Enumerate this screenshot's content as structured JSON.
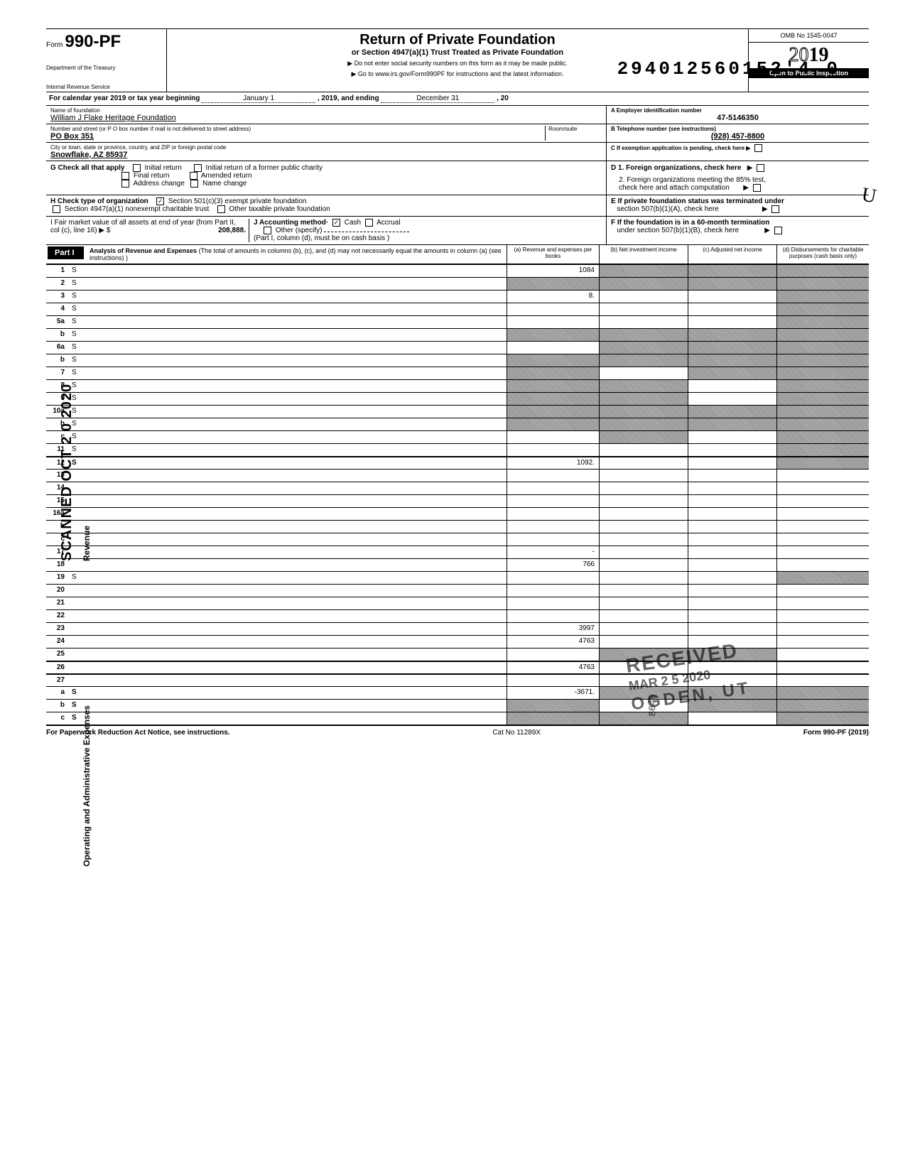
{
  "dln": "294012560152'4",
  "dln_trail": "0",
  "header": {
    "form_word": "Form",
    "form_num": "990-PF",
    "dept1": "Department of the Treasury",
    "dept2": "Internal Revenue Service",
    "title": "Return of Private Foundation",
    "subtitle": "or Section 4947(a)(1) Trust Treated as Private Foundation",
    "note1": "▶ Do not enter social security numbers on this form as it may be made public.",
    "note2": "▶ Go to www.irs.gov/Form990PF for instructions and the latest information.",
    "omb": "OMB No 1545-0047",
    "year_prefix": "20",
    "year_suffix": "19",
    "opi": "Open to Public Inspection"
  },
  "cal": {
    "text1": "For calendar year 2019 or tax year beginning",
    "begin": "January 1",
    "text2": ", 2019, and ending",
    "end": "December 31",
    "text3": ", 20"
  },
  "foundation": {
    "name_lbl": "Name of foundation",
    "name": "William J Flake Heritage Foundation",
    "addr_lbl": "Number and street (or P O  box number if mail is not delivered to street address)",
    "room_lbl": "Room/suite",
    "addr": "PO Box 351",
    "city_lbl": "City or town, state or province, country, and ZIP or foreign postal code",
    "city": "Snowflake, AZ 85937",
    "ein_lbl": "A  Employer identification number",
    "ein": "47-5146350",
    "tel_lbl": "B  Telephone number (see instructions)",
    "tel": "(928) 457-8800",
    "c_lbl": "C  If exemption application is pending, check here ▶"
  },
  "g": {
    "lbl": "G   Check all that apply",
    "opt1": "Initial return",
    "opt2": "Initial return of a former public charity",
    "opt3": "Final return",
    "opt4": "Amended return",
    "opt5": "Address change",
    "opt6": "Name change",
    "d1": "D  1. Foreign organizations, check here",
    "d2a": "2. Foreign organizations meeting the 85% test,",
    "d2b": "check here and attach computation"
  },
  "h": {
    "lbl": "H   Check type of organization",
    "opt1": "Section 501(c)(3) exempt private foundation",
    "opt2": "Section 4947(a)(1) nonexempt charitable trust",
    "opt3": "Other taxable private foundation",
    "e1": "E  If private foundation status was terminated under",
    "e2": "section 507(b)(1)(A), check here"
  },
  "i": {
    "lbl": "I    Fair market value of all assets at end of year (from Part II, col (c), line 16) ▶ $",
    "val": "208,888.",
    "j_lbl": "J   Accounting method·",
    "j_cash": "Cash",
    "j_accrual": "Accrual",
    "j_other": "Other (specify)",
    "j_note": "(Part I, column (d), must be on cash basis )",
    "f1": "F  If the foundation is in a 60-month termination",
    "f2": "under section 507(b)(1)(B), check here"
  },
  "part1": {
    "lbl": "Part I",
    "title": "Analysis of Revenue and Expenses",
    "desc": "(The total of amounts in columns (b), (c), and (d) may not necessarily equal the amounts in column (a) (see instructions) )",
    "col_a": "(a) Revenue and expenses per books",
    "col_b": "(b) Net investment income",
    "col_c": "(c) Adjusted net income",
    "col_d": "(d) Disbursements for charitable purposes (cash basis only)"
  },
  "sidelabels": {
    "revenue": "Revenue",
    "expenses": "Operating and Administrative Expenses"
  },
  "rows": [
    {
      "n": "1",
      "d": "S",
      "a": "1084",
      "b": "S",
      "c": "S"
    },
    {
      "n": "2",
      "d": "S",
      "a": "S",
      "b": "S",
      "c": "S"
    },
    {
      "n": "3",
      "d": "S",
      "a": "8.",
      "b": "",
      "c": ""
    },
    {
      "n": "4",
      "d": "S",
      "a": "",
      "b": "",
      "c": ""
    },
    {
      "n": "5a",
      "d": "S",
      "a": "",
      "b": "",
      "c": ""
    },
    {
      "n": "b",
      "d": "S",
      "a": "S",
      "b": "S",
      "c": "S"
    },
    {
      "n": "6a",
      "d": "S",
      "a": "",
      "b": "S",
      "c": "S"
    },
    {
      "n": "b",
      "d": "S",
      "a": "S",
      "b": "S",
      "c": "S"
    },
    {
      "n": "7",
      "d": "S",
      "a": "S",
      "b": "",
      "c": "S"
    },
    {
      "n": "8",
      "d": "S",
      "a": "S",
      "b": "S",
      "c": ""
    },
    {
      "n": "9",
      "d": "S",
      "a": "S",
      "b": "S",
      "c": ""
    },
    {
      "n": "10a",
      "d": "S",
      "a": "S",
      "b": "S",
      "c": "S"
    },
    {
      "n": "b",
      "d": "S",
      "a": "S",
      "b": "S",
      "c": "S"
    },
    {
      "n": "c",
      "d": "S",
      "a": "",
      "b": "S",
      "c": ""
    },
    {
      "n": "11",
      "d": "S",
      "a": "",
      "b": "",
      "c": ""
    },
    {
      "n": "12",
      "d": "S",
      "a": "1092.",
      "b": "",
      "c": "",
      "total": true,
      "thick": true
    },
    {
      "n": "13",
      "d": "",
      "a": "",
      "b": "",
      "c": ""
    },
    {
      "n": "14",
      "d": "",
      "a": "",
      "b": "",
      "c": ""
    },
    {
      "n": "15",
      "d": "",
      "a": "",
      "b": "",
      "c": ""
    },
    {
      "n": "16a",
      "d": "",
      "a": "",
      "b": "",
      "c": ""
    },
    {
      "n": "b",
      "d": "",
      "a": "",
      "b": "",
      "c": ""
    },
    {
      "n": "c",
      "d": "",
      "a": "",
      "b": "",
      "c": ""
    },
    {
      "n": "17",
      "d": "",
      "a": "-",
      "b": "",
      "c": ""
    },
    {
      "n": "18",
      "d": "",
      "a": "766",
      "b": "",
      "c": ""
    },
    {
      "n": "19",
      "d": "S",
      "a": "",
      "b": "",
      "c": ""
    },
    {
      "n": "20",
      "d": "",
      "a": "",
      "b": "",
      "c": ""
    },
    {
      "n": "21",
      "d": "",
      "a": "",
      "b": "",
      "c": ""
    },
    {
      "n": "22",
      "d": "",
      "a": "",
      "b": "",
      "c": ""
    },
    {
      "n": "23",
      "d": "",
      "a": "3997",
      "b": "",
      "c": ""
    },
    {
      "n": "24",
      "d": "",
      "a": "4763",
      "b": "",
      "c": "",
      "total": true
    },
    {
      "n": "25",
      "d": "",
      "a": "",
      "b": "S",
      "c": "S"
    },
    {
      "n": "26",
      "d": "",
      "a": "4763",
      "b": "",
      "c": "",
      "total": true,
      "thick": true
    },
    {
      "n": "27",
      "d": "",
      "a": "",
      "b": "",
      "c": "",
      "thick": true
    },
    {
      "n": "a",
      "d": "S",
      "a": "-3671.",
      "b": "S",
      "c": "S",
      "total": true
    },
    {
      "n": "b",
      "d": "S",
      "a": "S",
      "b": "",
      "c": "S",
      "total": true
    },
    {
      "n": "c",
      "d": "S",
      "a": "S",
      "b": "S",
      "c": "",
      "total": true
    }
  ],
  "footer": {
    "left": "For Paperwork Reduction Act Notice, see instructions.",
    "mid": "Cat No  11289X",
    "right": "Form 990-PF (2019)"
  },
  "stamps": {
    "scanned": "SCANNED OCT 2 0 2020",
    "received1": "RECEIVED",
    "received2": "MAR 2 5 2020",
    "received3": "OGDEN, UT",
    "sidenum": "8649"
  }
}
